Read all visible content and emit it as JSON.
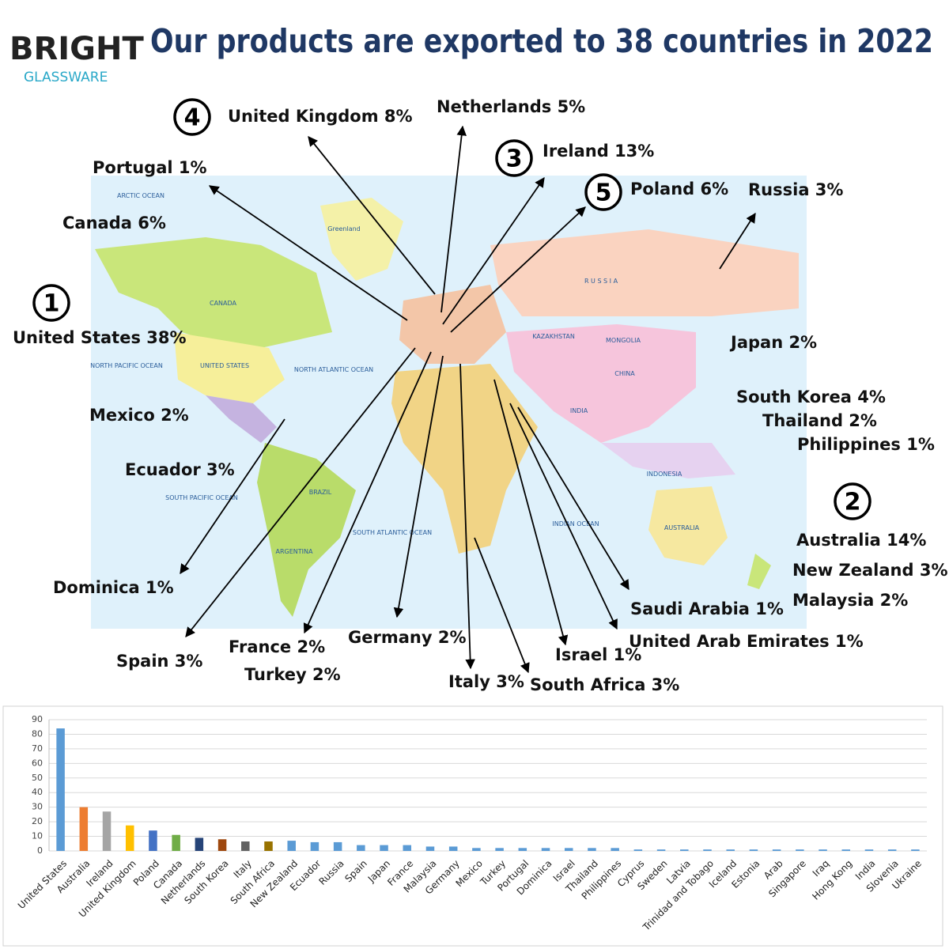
{
  "header": {
    "logo": "BRIGHT",
    "logo_sub": "GLASSWARE",
    "title": "Our products are exported to 38 countries in 2022"
  },
  "map": {
    "labels": [
      "ARCTIC OCEAN",
      "Greenland",
      "CANADA",
      "UNITED STATES",
      "R U S S I A",
      "CHINA",
      "INDIA",
      "AUSTRALIA",
      "BRAZIL",
      "NORTH PACIFIC OCEAN",
      "NORTH ATLANTIC OCEAN",
      "SOUTH PACIFIC OCEAN",
      "SOUTH ATLANTIC OCEAN",
      "INDIAN OCEAN",
      "INDONESIA",
      "MONGOLIA",
      "KAZAKHSTAN",
      "ARGENTINA"
    ],
    "callouts": [
      {
        "text": "United Kingdom 8%",
        "badge": "4"
      },
      {
        "text": "Netherlands 5%"
      },
      {
        "text": "Ireland 13%",
        "badge": "3"
      },
      {
        "text": "Portugal 1%"
      },
      {
        "text": "Poland 6%",
        "badge": "5"
      },
      {
        "text": "Russia 3%"
      },
      {
        "text": "Canada 6%"
      },
      {
        "text": "United States 38%",
        "badge": "1"
      },
      {
        "text": "Japan 2%"
      },
      {
        "text": "South Korea 4%"
      },
      {
        "text": "Thailand 2%"
      },
      {
        "text": "Philippines 1%"
      },
      {
        "text": "Australia 14%",
        "badge": "2"
      },
      {
        "text": "New Zealand 3%"
      },
      {
        "text": "Malaysia 2%"
      },
      {
        "text": "Mexico 2%"
      },
      {
        "text": "Ecuador 3%"
      },
      {
        "text": "Dominica 1%"
      },
      {
        "text": "Spain 3%"
      },
      {
        "text": "France 2%"
      },
      {
        "text": "Turkey 2%"
      },
      {
        "text": "Germany 2%"
      },
      {
        "text": "Italy 3%"
      },
      {
        "text": "South Africa 3%"
      },
      {
        "text": "Israel 1%"
      },
      {
        "text": "United Arab Emirates 1%"
      },
      {
        "text": "Saudi Arabia 1%"
      }
    ]
  },
  "chart_data": {
    "type": "bar",
    "categories": [
      "United States",
      "Australia",
      "Ireland",
      "United Kingdom",
      "Poland",
      "Canada",
      "Netherlands",
      "South Korea",
      "Italy",
      "South Africa",
      "New Zealand",
      "Ecuador",
      "Russia",
      "Spain",
      "Japan",
      "France",
      "Malaysia",
      "Germany",
      "Mexico",
      "Turkey",
      "Portugal",
      "Dominica",
      "Israel",
      "Thailand",
      "Philippines",
      "Cyprus",
      "Sweden",
      "Latvia",
      "Trinidad and Tobago",
      "Iceland",
      "Estonia",
      "Arab",
      "Singapore",
      "Iraq",
      "Hong Kong",
      "India",
      "Slovenia",
      "Ukraine"
    ],
    "values": [
      84,
      30,
      27,
      17.5,
      14,
      11,
      9,
      8,
      6.5,
      6.5,
      7,
      6,
      6,
      4,
      4,
      4,
      3,
      3,
      2,
      2,
      2,
      2,
      2,
      2,
      2,
      1,
      1,
      1,
      1,
      1,
      1,
      1,
      1,
      1,
      1,
      1,
      1,
      1
    ],
    "colors": [
      "#5b9bd5",
      "#ed7d31",
      "#a5a5a5",
      "#ffc000",
      "#4472c4",
      "#70ad47",
      "#264478",
      "#9e480e",
      "#636363",
      "#997300",
      "#5b9bd5",
      "#5b9bd5",
      "#5b9bd5",
      "#5b9bd5",
      "#5b9bd5",
      "#5b9bd5",
      "#5b9bd5",
      "#5b9bd5",
      "#5b9bd5",
      "#5b9bd5",
      "#5b9bd5",
      "#5b9bd5",
      "#5b9bd5",
      "#5b9bd5",
      "#5b9bd5",
      "#5b9bd5",
      "#5b9bd5",
      "#5b9bd5",
      "#5b9bd5",
      "#5b9bd5",
      "#5b9bd5",
      "#5b9bd5",
      "#5b9bd5",
      "#5b9bd5",
      "#5b9bd5",
      "#5b9bd5",
      "#5b9bd5",
      "#5b9bd5"
    ],
    "ylim": [
      0,
      90
    ],
    "yticks": [
      0,
      10,
      20,
      30,
      40,
      50,
      60,
      70,
      80,
      90
    ],
    "grid": true
  }
}
